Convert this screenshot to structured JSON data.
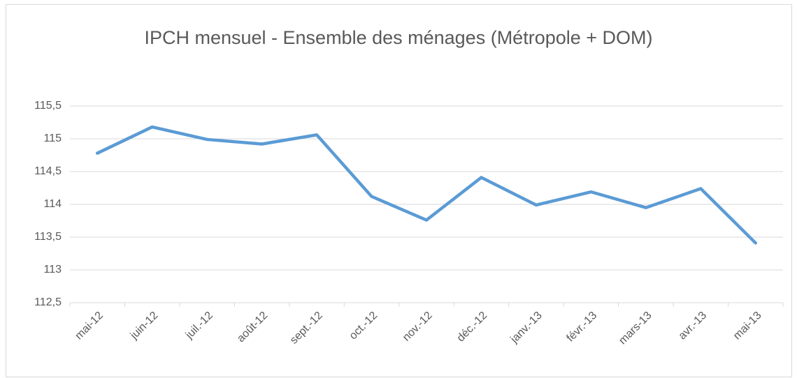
{
  "chart_data": {
    "type": "line",
    "title": "IPCH mensuel - Ensemble des ménages (Métropole + DOM)",
    "categories": [
      "mai-12",
      "juin-12",
      "juil.-12",
      "août-12",
      "sept.-12",
      "oct.-12",
      "nov.-12",
      "déc.-12",
      "janv.-13",
      "févr.-13",
      "mars-13",
      "avr.-13",
      "mai-13"
    ],
    "series": [
      {
        "name": "IPCH",
        "color": "#5b9bd5",
        "values": [
          114.78,
          115.18,
          114.99,
          114.92,
          115.06,
          114.12,
          113.76,
          114.41,
          113.99,
          114.19,
          113.95,
          114.24,
          113.41
        ]
      }
    ],
    "ylim": [
      112.5,
      115.5
    ],
    "yticks": [
      {
        "value": 112.5,
        "label": "112,5"
      },
      113,
      {
        "value": 113.5,
        "label": "113,5"
      },
      114,
      {
        "value": 114.5,
        "label": "114,5"
      },
      115,
      {
        "value": 115.5,
        "label": "115,5"
      }
    ],
    "grid": true
  }
}
